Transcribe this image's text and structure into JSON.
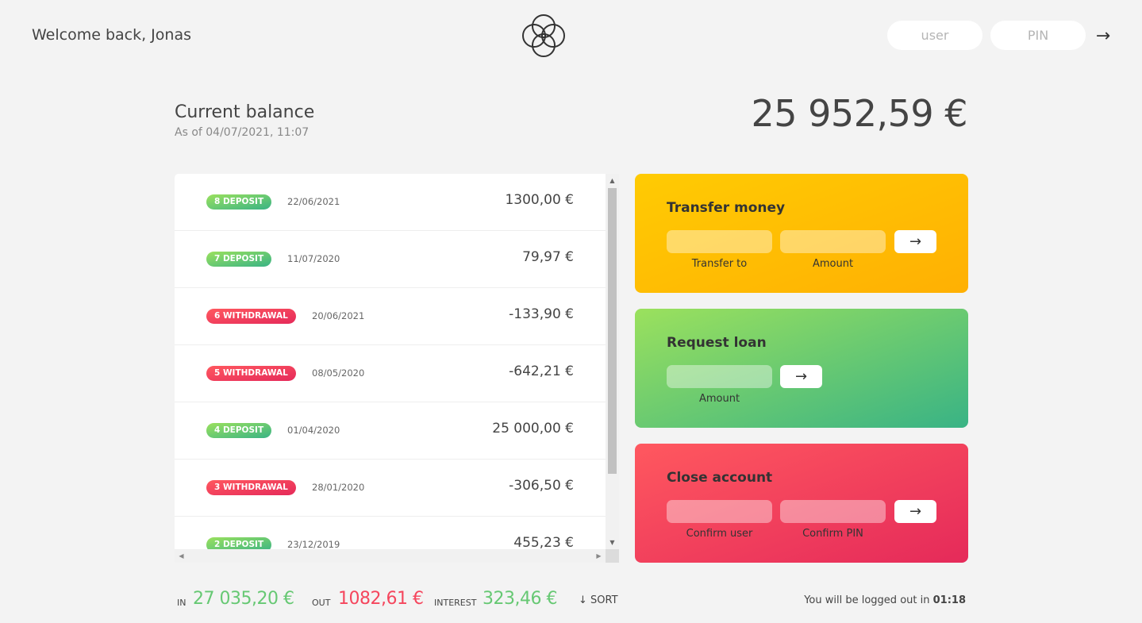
{
  "nav": {
    "welcome": "Welcome back, Jonas",
    "user_placeholder": "user",
    "pin_placeholder": "PIN",
    "login_icon": "arrow-right-icon",
    "login_glyph": "→"
  },
  "balance": {
    "label": "Current balance",
    "date": "As of 04/07/2021, 11:07",
    "value": "25 952,59 €"
  },
  "movements": [
    {
      "type_label": "8 deposit",
      "type": "deposit",
      "date": "22/06/2021",
      "value": "1300,00 €"
    },
    {
      "type_label": "7 deposit",
      "type": "deposit",
      "date": "11/07/2020",
      "value": "79,97 €"
    },
    {
      "type_label": "6 withdrawal",
      "type": "withdrawal",
      "date": "20/06/2021",
      "value": "-133,90 €"
    },
    {
      "type_label": "5 withdrawal",
      "type": "withdrawal",
      "date": "08/05/2020",
      "value": "-642,21 €"
    },
    {
      "type_label": "4 deposit",
      "type": "deposit",
      "date": "01/04/2020",
      "value": "25 000,00 €"
    },
    {
      "type_label": "3 withdrawal",
      "type": "withdrawal",
      "date": "28/01/2020",
      "value": "-306,50 €"
    },
    {
      "type_label": "2 deposit",
      "type": "deposit",
      "date": "23/12/2019",
      "value": "455,23 €"
    }
  ],
  "operations": {
    "transfer": {
      "title": "Transfer money",
      "label_to": "Transfer to",
      "label_amount": "Amount",
      "button_glyph": "→"
    },
    "loan": {
      "title": "Request loan",
      "label_amount": "Amount",
      "button_glyph": "→"
    },
    "close": {
      "title": "Close account",
      "label_user": "Confirm user",
      "label_pin": "Confirm PIN",
      "button_glyph": "→"
    }
  },
  "summary": {
    "in_label": "In",
    "in_value": "27 035,20 €",
    "out_label": "Out",
    "out_value": "1082,61 €",
    "interest_label": "Interest",
    "interest_value": "323,46 €",
    "sort_label": "↓ SORT",
    "logout_text": "You will be logged out in ",
    "logout_time": "01:18"
  },
  "colors": {
    "deposit": "#66c873",
    "withdrawal": "#f5465d",
    "transfer": "#ffb003",
    "loan": "#39b385",
    "close": "#e52a5a"
  }
}
